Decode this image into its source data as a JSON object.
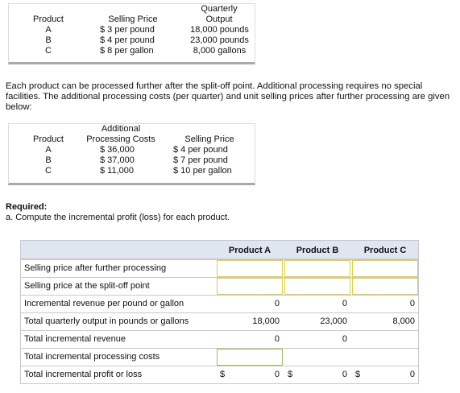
{
  "table1": {
    "headers": [
      "Product",
      "Selling Price",
      "Quarterly Output"
    ],
    "rows": [
      [
        "A",
        "$ 3 per pound",
        "18,000 pounds"
      ],
      [
        "B",
        "$ 4 per pound",
        "23,000 pounds"
      ],
      [
        "C",
        "$ 8 per gallon",
        "8,000 gallons"
      ]
    ]
  },
  "paragraph": "Each product can be processed further after the split-off point. Additional processing requires no special facilities. The additional processing costs (per quarter) and unit selling prices after further processing are given below:",
  "table2": {
    "headers": [
      "Product",
      "Additional Processing Costs",
      "Selling Price"
    ],
    "rows": [
      [
        "A",
        "$ 36,000",
        "$ 4 per pound"
      ],
      [
        "B",
        "$ 37,000",
        "$ 7 per pound"
      ],
      [
        "C",
        "$ 11,000",
        "$ 10 per gallon"
      ]
    ]
  },
  "required": {
    "heading": "Required:",
    "task": "a. Compute the incremental profit (loss) for each product."
  },
  "answer_table": {
    "headers": [
      "Product A",
      "Product B",
      "Product C"
    ],
    "rows": [
      {
        "label": "Selling price after further processing",
        "values": [
          null,
          null,
          null
        ]
      },
      {
        "label": "Selling price at the split-off point",
        "values": [
          null,
          null,
          null
        ]
      },
      {
        "label": "Incremental revenue per pound or gallon",
        "values": [
          "0",
          "0",
          "0"
        ]
      },
      {
        "label": "Total quarterly output in pounds or gallons",
        "values": [
          "18,000",
          "23,000",
          "8,000"
        ]
      },
      {
        "label": "Total incremental revenue",
        "values": [
          "0",
          "0",
          null
        ]
      },
      {
        "label": "Total incremental processing costs",
        "values": [
          null,
          null,
          null
        ]
      },
      {
        "label": "Total incremental profit or loss",
        "values": [
          "0",
          "0",
          "0"
        ],
        "dollar_signs": [
          "$",
          "$",
          "$"
        ]
      }
    ]
  }
}
